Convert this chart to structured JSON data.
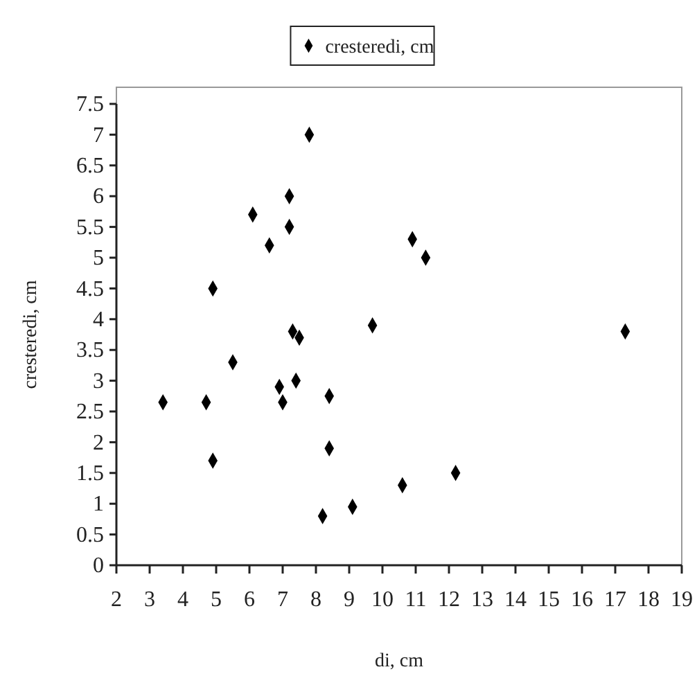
{
  "chart_data": {
    "type": "scatter",
    "xlabel": "di, cm",
    "ylabel": "cresteredi, cm",
    "xlim": [
      2,
      19
    ],
    "xticks": [
      2,
      3,
      4,
      5,
      6,
      7,
      8,
      9,
      10,
      11,
      12,
      13,
      14,
      15,
      16,
      17,
      18,
      19
    ],
    "ylim": [
      0,
      7.5
    ],
    "yticks": [
      0,
      0.5,
      1,
      1.5,
      2,
      2.5,
      3,
      3.5,
      4,
      4.5,
      5,
      5.5,
      6,
      6.5,
      7,
      7.5
    ],
    "grid": false,
    "legend": "top",
    "marker": "diamond",
    "series": [
      {
        "name": "cresteredi, cm",
        "color": "#000000",
        "x": [
          3.4,
          4.7,
          4.9,
          4.9,
          5.5,
          6.1,
          6.6,
          6.9,
          7.0,
          7.2,
          7.2,
          7.3,
          7.4,
          7.5,
          7.8,
          8.2,
          8.4,
          8.4,
          9.1,
          9.7,
          10.6,
          10.9,
          11.3,
          12.2,
          17.3
        ],
        "values": [
          2.65,
          2.65,
          4.5,
          1.7,
          3.3,
          5.7,
          5.2,
          2.9,
          2.65,
          6.0,
          5.5,
          3.8,
          3.0,
          3.7,
          7.0,
          0.8,
          2.75,
          1.9,
          0.95,
          3.9,
          1.3,
          5.3,
          5.0,
          1.5,
          3.8
        ]
      }
    ]
  }
}
